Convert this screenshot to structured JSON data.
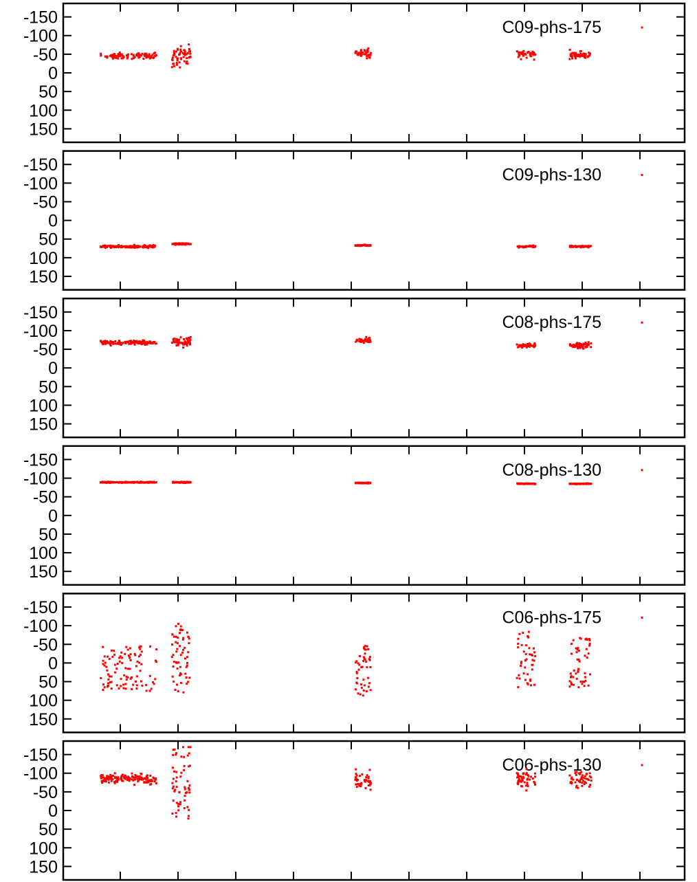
{
  "chart_data": [
    {
      "type": "scatter",
      "name": "C09-phs-175",
      "key_label": "C09-phs-175",
      "ylim": [
        -175,
        175
      ],
      "y_reversed": true,
      "y_ticks": [
        -150,
        -100,
        -50,
        0,
        50,
        100,
        150
      ],
      "y_tick_labels": [
        "-150",
        "-100",
        "-50",
        "0",
        "50",
        "100",
        "150"
      ],
      "grid": false,
      "x_axis_tick_labels": false,
      "legend_position": "top-right",
      "marker_color": "#ff0000",
      "clusters": [
        {
          "x_start": 0.06,
          "x_end": 0.15,
          "y_center": -45,
          "y_spread": 8,
          "n": 90
        },
        {
          "x_start": 0.175,
          "x_end": 0.205,
          "y_center": -45,
          "y_spread": 28,
          "n": 60
        },
        {
          "x_start": 0.47,
          "x_end": 0.495,
          "y_center": -52,
          "y_spread": 12,
          "n": 40
        },
        {
          "x_start": 0.73,
          "x_end": 0.76,
          "y_center": -50,
          "y_spread": 10,
          "n": 40
        },
        {
          "x_start": 0.815,
          "x_end": 0.85,
          "y_center": -48,
          "y_spread": 8,
          "n": 50
        }
      ]
    },
    {
      "type": "scatter",
      "name": "C09-phs-130",
      "key_label": "C09-phs-130",
      "ylim": [
        -175,
        175
      ],
      "y_reversed": true,
      "y_ticks": [
        -150,
        -100,
        -50,
        0,
        50,
        100,
        150
      ],
      "y_tick_labels": [
        "-150",
        "-100",
        "-50",
        "0",
        "50",
        "100",
        "150"
      ],
      "grid": false,
      "x_axis_tick_labels": false,
      "legend_position": "top-right",
      "marker_color": "#ff0000",
      "clusters": [
        {
          "x_start": 0.06,
          "x_end": 0.15,
          "y_center": 70,
          "y_spread": 3,
          "n": 140
        },
        {
          "x_start": 0.175,
          "x_end": 0.205,
          "y_center": 63,
          "y_spread": 2,
          "n": 60
        },
        {
          "x_start": 0.47,
          "x_end": 0.495,
          "y_center": 67,
          "y_spread": 1.5,
          "n": 50
        },
        {
          "x_start": 0.73,
          "x_end": 0.76,
          "y_center": 70,
          "y_spread": 2,
          "n": 50
        },
        {
          "x_start": 0.815,
          "x_end": 0.85,
          "y_center": 70,
          "y_spread": 2,
          "n": 60
        }
      ]
    },
    {
      "type": "scatter",
      "name": "C08-phs-175",
      "key_label": "C08-phs-175",
      "ylim": [
        -175,
        175
      ],
      "y_reversed": true,
      "y_ticks": [
        -150,
        -100,
        -50,
        0,
        50,
        100,
        150
      ],
      "y_tick_labels": [
        "-150",
        "-100",
        "-50",
        "0",
        "50",
        "100",
        "150"
      ],
      "grid": false,
      "x_axis_tick_labels": false,
      "legend_position": "top-right",
      "marker_color": "#ff0000",
      "clusters": [
        {
          "x_start": 0.06,
          "x_end": 0.15,
          "y_center": -68,
          "y_spread": 5,
          "n": 140
        },
        {
          "x_start": 0.175,
          "x_end": 0.205,
          "y_center": -70,
          "y_spread": 12,
          "n": 60
        },
        {
          "x_start": 0.47,
          "x_end": 0.495,
          "y_center": -73,
          "y_spread": 7,
          "n": 45
        },
        {
          "x_start": 0.73,
          "x_end": 0.76,
          "y_center": -60,
          "y_spread": 6,
          "n": 50
        },
        {
          "x_start": 0.815,
          "x_end": 0.85,
          "y_center": -60,
          "y_spread": 7,
          "n": 60
        }
      ]
    },
    {
      "type": "scatter",
      "name": "C08-phs-130",
      "key_label": "C08-phs-130",
      "ylim": [
        -175,
        175
      ],
      "y_reversed": true,
      "y_ticks": [
        -150,
        -100,
        -50,
        0,
        50,
        100,
        150
      ],
      "y_tick_labels": [
        "-150",
        "-100",
        "-50",
        "0",
        "50",
        "100",
        "150"
      ],
      "grid": false,
      "x_axis_tick_labels": false,
      "legend_position": "top-right",
      "marker_color": "#ff0000",
      "clusters": [
        {
          "x_start": 0.06,
          "x_end": 0.15,
          "y_center": -89,
          "y_spread": 1.5,
          "n": 150
        },
        {
          "x_start": 0.175,
          "x_end": 0.205,
          "y_center": -89,
          "y_spread": 1.5,
          "n": 60
        },
        {
          "x_start": 0.47,
          "x_end": 0.495,
          "y_center": -87,
          "y_spread": 1,
          "n": 50
        },
        {
          "x_start": 0.73,
          "x_end": 0.76,
          "y_center": -85,
          "y_spread": 1,
          "n": 50
        },
        {
          "x_start": 0.815,
          "x_end": 0.85,
          "y_center": -85,
          "y_spread": 1,
          "n": 60
        }
      ]
    },
    {
      "type": "scatter",
      "name": "C06-phs-175",
      "key_label": "C06-phs-175",
      "ylim": [
        -175,
        175
      ],
      "y_reversed": true,
      "y_ticks": [
        -150,
        -100,
        -50,
        0,
        50,
        100,
        150
      ],
      "y_tick_labels": [
        "-150",
        "-100",
        "-50",
        "0",
        "50",
        "100",
        "150"
      ],
      "grid": false,
      "x_axis_tick_labels": false,
      "legend_position": "top-right",
      "marker_color": "#ff0000",
      "clusters": [
        {
          "x_start": 0.06,
          "x_end": 0.15,
          "y_center": 15,
          "y_spread": 60,
          "n": 100
        },
        {
          "x_start": 0.175,
          "x_end": 0.205,
          "y_center": -10,
          "y_spread": 95,
          "n": 60
        },
        {
          "x_start": 0.47,
          "x_end": 0.495,
          "y_center": 20,
          "y_spread": 70,
          "n": 45
        },
        {
          "x_start": 0.73,
          "x_end": 0.76,
          "y_center": -10,
          "y_spread": 75,
          "n": 45
        },
        {
          "x_start": 0.815,
          "x_end": 0.85,
          "y_center": 0,
          "y_spread": 70,
          "n": 50
        }
      ]
    },
    {
      "type": "scatter",
      "name": "C06-phs-130",
      "key_label": "C06-phs-130",
      "ylim": [
        -175,
        175
      ],
      "y_reversed": true,
      "y_ticks": [
        -150,
        -100,
        -50,
        0,
        50,
        100,
        150
      ],
      "y_tick_labels": [
        "-150",
        "-100",
        "-50",
        "0",
        "50",
        "100",
        "150"
      ],
      "grid": false,
      "x_axis_tick_labels": false,
      "legend_position": "top-right",
      "marker_color": "#ff0000",
      "clusters": [
        {
          "x_start": 0.06,
          "x_end": 0.15,
          "y_center": -85,
          "y_spread": 12,
          "n": 150
        },
        {
          "x_start": 0.175,
          "x_end": 0.205,
          "y_center": -80,
          "y_spread": 110,
          "n": 60
        },
        {
          "x_start": 0.47,
          "x_end": 0.495,
          "y_center": -80,
          "y_spread": 25,
          "n": 50
        },
        {
          "x_start": 0.73,
          "x_end": 0.76,
          "y_center": -85,
          "y_spread": 25,
          "n": 50
        },
        {
          "x_start": 0.815,
          "x_end": 0.85,
          "y_center": -85,
          "y_spread": 25,
          "n": 50
        }
      ]
    }
  ]
}
